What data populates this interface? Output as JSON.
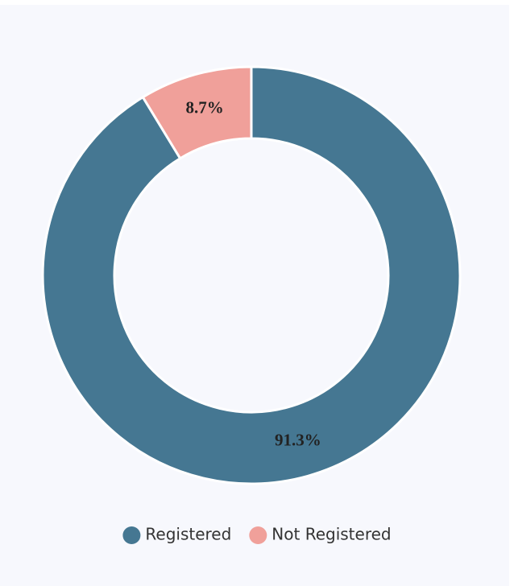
{
  "chart_data": {
    "type": "pie",
    "donut": true,
    "categories": [
      "Registered",
      "Not Registered"
    ],
    "values": [
      91.3,
      8.7
    ],
    "value_labels": [
      "91.3%",
      "8.7%"
    ],
    "colors": [
      "#457792",
      "#f0a09a"
    ]
  }
}
